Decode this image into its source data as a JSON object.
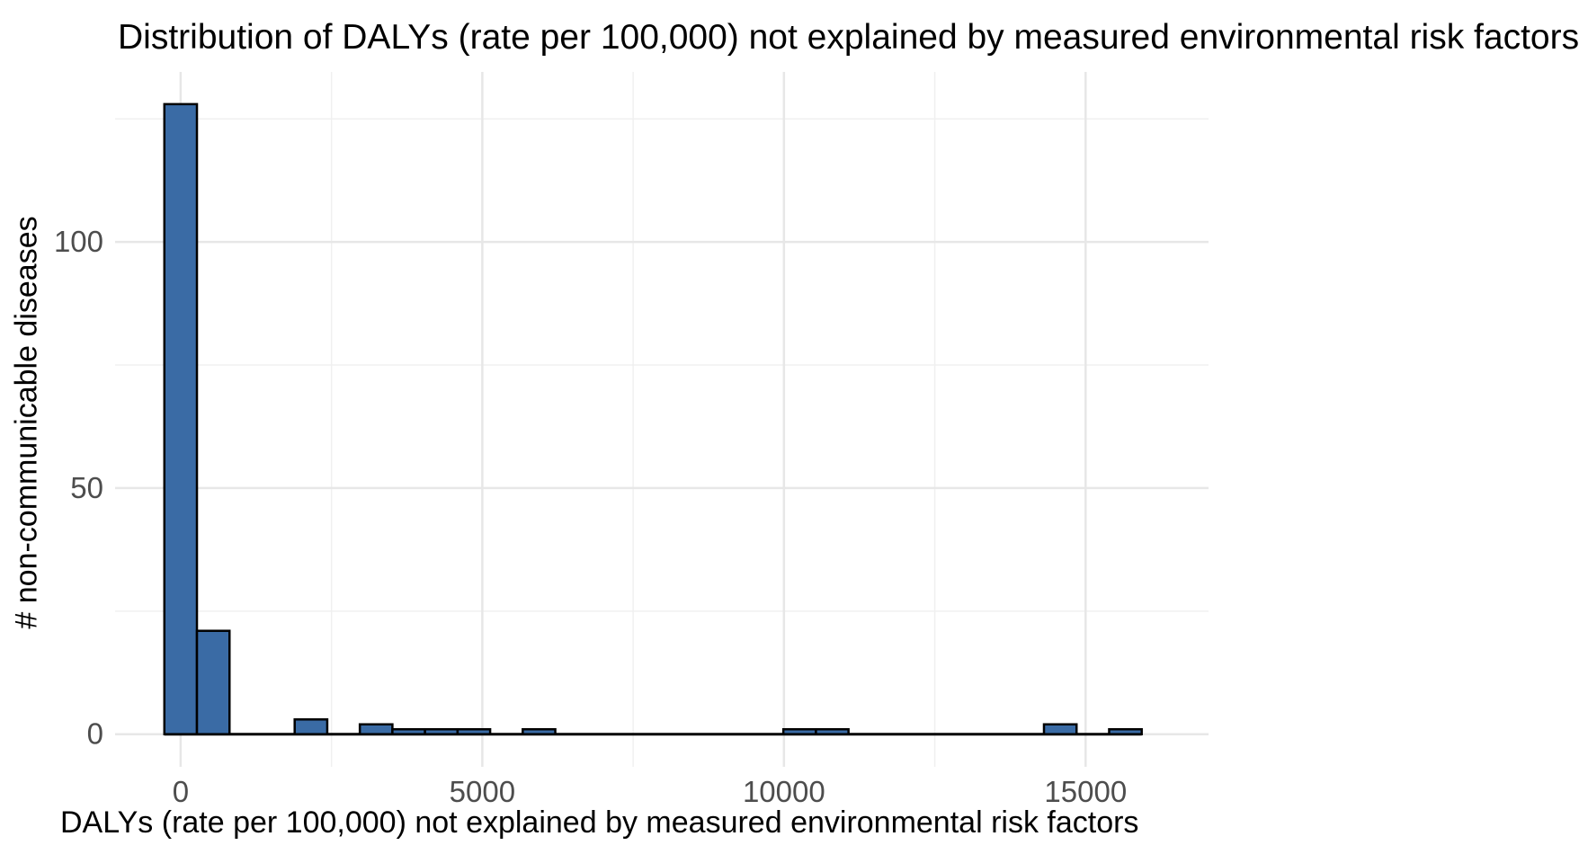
{
  "title": "Distribution of DALYs (rate per 100,000) not explained by measured environmental risk factors",
  "chart_data": {
    "type": "bar",
    "subtype": "histogram",
    "title": "Distribution of DALYs (rate per 100,000) not explained by measured environmental risk factors",
    "xlabel": "DALYs (rate per 100,000) not explained by measured environmental risk factors",
    "ylabel": "# non-communicable diseases",
    "bin_width": 540,
    "bin_centers": [
      0,
      540,
      1080,
      1620,
      2160,
      2700,
      3240,
      3780,
      4320,
      4860,
      5400,
      5940,
      6480,
      7020,
      7560,
      8100,
      8640,
      9180,
      9720,
      10260,
      10800,
      11340,
      11880,
      12420,
      12960,
      13500,
      14040,
      14580,
      15120,
      15660
    ],
    "counts": [
      128,
      21,
      0,
      0,
      3,
      0,
      2,
      1,
      1,
      1,
      0,
      1,
      0,
      0,
      0,
      0,
      0,
      0,
      0,
      1,
      1,
      0,
      0,
      0,
      0,
      0,
      0,
      2,
      0,
      1
    ],
    "x_ticks": [
      {
        "value": 0,
        "label": "0"
      },
      {
        "value": 5000,
        "label": "5000"
      },
      {
        "value": 10000,
        "label": "10000"
      },
      {
        "value": 15000,
        "label": "15000"
      }
    ],
    "y_ticks": [
      {
        "value": 0,
        "label": "0"
      },
      {
        "value": 50,
        "label": "50"
      },
      {
        "value": 100,
        "label": "100"
      }
    ],
    "x_minor_gridlines": [
      2500,
      7500,
      12500
    ],
    "y_minor_gridlines": [
      25,
      75,
      125
    ],
    "x_range_visible": [
      -1090,
      17040
    ],
    "y_range_visible": [
      -6.6,
      134.5
    ],
    "grid": true,
    "legend": false,
    "colors": {
      "bar_fill": "#3a6ba5",
      "bar_border": "#000000",
      "major_grid": "#e7e7e7",
      "minor_grid": "#f0f0f0",
      "tick_label": "#4d4d4d",
      "title_text": "#000000",
      "background": "#ffffff"
    }
  }
}
